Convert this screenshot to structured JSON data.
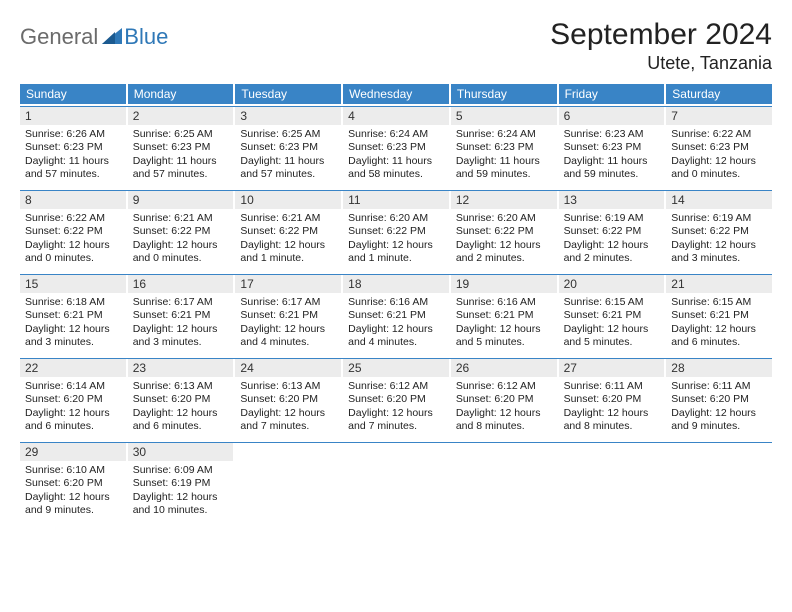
{
  "brand": {
    "general": "General",
    "blue": "Blue"
  },
  "title": "September 2024",
  "location": "Utete, Tanzania",
  "header_bg": "#3984c6",
  "header_fg": "#ffffff",
  "daynum_bg": "#ececec",
  "week_border": "#3984c6",
  "weekdays": [
    "Sunday",
    "Monday",
    "Tuesday",
    "Wednesday",
    "Thursday",
    "Friday",
    "Saturday"
  ],
  "weeks": [
    [
      {
        "n": "1",
        "sr": "Sunrise: 6:26 AM",
        "ss": "Sunset: 6:23 PM",
        "dl": "Daylight: 11 hours and 57 minutes."
      },
      {
        "n": "2",
        "sr": "Sunrise: 6:25 AM",
        "ss": "Sunset: 6:23 PM",
        "dl": "Daylight: 11 hours and 57 minutes."
      },
      {
        "n": "3",
        "sr": "Sunrise: 6:25 AM",
        "ss": "Sunset: 6:23 PM",
        "dl": "Daylight: 11 hours and 57 minutes."
      },
      {
        "n": "4",
        "sr": "Sunrise: 6:24 AM",
        "ss": "Sunset: 6:23 PM",
        "dl": "Daylight: 11 hours and 58 minutes."
      },
      {
        "n": "5",
        "sr": "Sunrise: 6:24 AM",
        "ss": "Sunset: 6:23 PM",
        "dl": "Daylight: 11 hours and 59 minutes."
      },
      {
        "n": "6",
        "sr": "Sunrise: 6:23 AM",
        "ss": "Sunset: 6:23 PM",
        "dl": "Daylight: 11 hours and 59 minutes."
      },
      {
        "n": "7",
        "sr": "Sunrise: 6:22 AM",
        "ss": "Sunset: 6:23 PM",
        "dl": "Daylight: 12 hours and 0 minutes."
      }
    ],
    [
      {
        "n": "8",
        "sr": "Sunrise: 6:22 AM",
        "ss": "Sunset: 6:22 PM",
        "dl": "Daylight: 12 hours and 0 minutes."
      },
      {
        "n": "9",
        "sr": "Sunrise: 6:21 AM",
        "ss": "Sunset: 6:22 PM",
        "dl": "Daylight: 12 hours and 0 minutes."
      },
      {
        "n": "10",
        "sr": "Sunrise: 6:21 AM",
        "ss": "Sunset: 6:22 PM",
        "dl": "Daylight: 12 hours and 1 minute."
      },
      {
        "n": "11",
        "sr": "Sunrise: 6:20 AM",
        "ss": "Sunset: 6:22 PM",
        "dl": "Daylight: 12 hours and 1 minute."
      },
      {
        "n": "12",
        "sr": "Sunrise: 6:20 AM",
        "ss": "Sunset: 6:22 PM",
        "dl": "Daylight: 12 hours and 2 minutes."
      },
      {
        "n": "13",
        "sr": "Sunrise: 6:19 AM",
        "ss": "Sunset: 6:22 PM",
        "dl": "Daylight: 12 hours and 2 minutes."
      },
      {
        "n": "14",
        "sr": "Sunrise: 6:19 AM",
        "ss": "Sunset: 6:22 PM",
        "dl": "Daylight: 12 hours and 3 minutes."
      }
    ],
    [
      {
        "n": "15",
        "sr": "Sunrise: 6:18 AM",
        "ss": "Sunset: 6:21 PM",
        "dl": "Daylight: 12 hours and 3 minutes."
      },
      {
        "n": "16",
        "sr": "Sunrise: 6:17 AM",
        "ss": "Sunset: 6:21 PM",
        "dl": "Daylight: 12 hours and 3 minutes."
      },
      {
        "n": "17",
        "sr": "Sunrise: 6:17 AM",
        "ss": "Sunset: 6:21 PM",
        "dl": "Daylight: 12 hours and 4 minutes."
      },
      {
        "n": "18",
        "sr": "Sunrise: 6:16 AM",
        "ss": "Sunset: 6:21 PM",
        "dl": "Daylight: 12 hours and 4 minutes."
      },
      {
        "n": "19",
        "sr": "Sunrise: 6:16 AM",
        "ss": "Sunset: 6:21 PM",
        "dl": "Daylight: 12 hours and 5 minutes."
      },
      {
        "n": "20",
        "sr": "Sunrise: 6:15 AM",
        "ss": "Sunset: 6:21 PM",
        "dl": "Daylight: 12 hours and 5 minutes."
      },
      {
        "n": "21",
        "sr": "Sunrise: 6:15 AM",
        "ss": "Sunset: 6:21 PM",
        "dl": "Daylight: 12 hours and 6 minutes."
      }
    ],
    [
      {
        "n": "22",
        "sr": "Sunrise: 6:14 AM",
        "ss": "Sunset: 6:20 PM",
        "dl": "Daylight: 12 hours and 6 minutes."
      },
      {
        "n": "23",
        "sr": "Sunrise: 6:13 AM",
        "ss": "Sunset: 6:20 PM",
        "dl": "Daylight: 12 hours and 6 minutes."
      },
      {
        "n": "24",
        "sr": "Sunrise: 6:13 AM",
        "ss": "Sunset: 6:20 PM",
        "dl": "Daylight: 12 hours and 7 minutes."
      },
      {
        "n": "25",
        "sr": "Sunrise: 6:12 AM",
        "ss": "Sunset: 6:20 PM",
        "dl": "Daylight: 12 hours and 7 minutes."
      },
      {
        "n": "26",
        "sr": "Sunrise: 6:12 AM",
        "ss": "Sunset: 6:20 PM",
        "dl": "Daylight: 12 hours and 8 minutes."
      },
      {
        "n": "27",
        "sr": "Sunrise: 6:11 AM",
        "ss": "Sunset: 6:20 PM",
        "dl": "Daylight: 12 hours and 8 minutes."
      },
      {
        "n": "28",
        "sr": "Sunrise: 6:11 AM",
        "ss": "Sunset: 6:20 PM",
        "dl": "Daylight: 12 hours and 9 minutes."
      }
    ],
    [
      {
        "n": "29",
        "sr": "Sunrise: 6:10 AM",
        "ss": "Sunset: 6:20 PM",
        "dl": "Daylight: 12 hours and 9 minutes."
      },
      {
        "n": "30",
        "sr": "Sunrise: 6:09 AM",
        "ss": "Sunset: 6:19 PM",
        "dl": "Daylight: 12 hours and 10 minutes."
      },
      null,
      null,
      null,
      null,
      null
    ]
  ]
}
